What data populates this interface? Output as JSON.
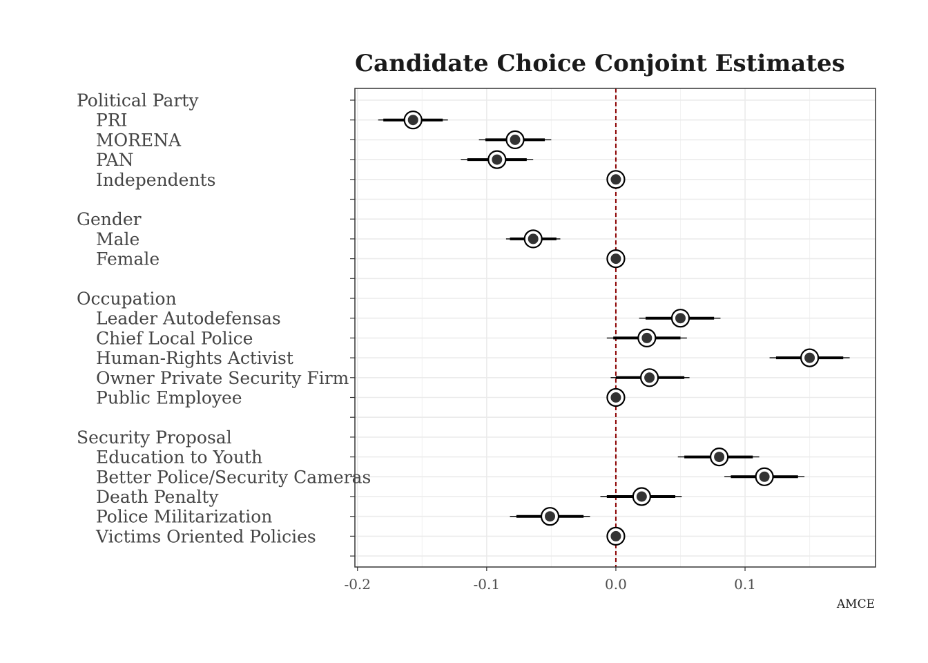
{
  "chart_data": {
    "type": "scatter",
    "title": "Candidate Choice Conjoint Estimates",
    "xlabel": "AMCE",
    "xlim": [
      -0.202,
      0.201
    ],
    "x_ticks": [
      -0.2,
      -0.1,
      0.0,
      0.1
    ],
    "x_tick_labels": [
      "-0.2",
      "-0.1",
      "0.0",
      "0.1"
    ],
    "reference_line": 0.0,
    "reference_color": "#8b0000",
    "grid": true,
    "rows": [
      {
        "label": "Political Party",
        "header": true
      },
      {
        "label": "PRI",
        "estimate": -0.157,
        "ci90": [
          -0.18,
          -0.134
        ],
        "ci95": [
          -0.184,
          -0.13
        ]
      },
      {
        "label": "MORENA",
        "estimate": -0.078,
        "ci90": [
          -0.101,
          -0.055
        ],
        "ci95": [
          -0.106,
          -0.05
        ]
      },
      {
        "label": "PAN",
        "estimate": -0.092,
        "ci90": [
          -0.115,
          -0.069
        ],
        "ci95": [
          -0.12,
          -0.064
        ]
      },
      {
        "label": "Independents",
        "estimate": 0.0
      },
      {
        "label": "",
        "spacer": true
      },
      {
        "label": "Gender",
        "header": true
      },
      {
        "label": "Male",
        "estimate": -0.064,
        "ci90": [
          -0.082,
          -0.046
        ],
        "ci95": [
          -0.085,
          -0.043
        ]
      },
      {
        "label": "Female",
        "estimate": 0.0
      },
      {
        "label": "",
        "spacer": true
      },
      {
        "label": "Occupation",
        "header": true
      },
      {
        "label": "Leader Autodefensas",
        "estimate": 0.05,
        "ci90": [
          0.023,
          0.076
        ],
        "ci95": [
          0.018,
          0.081
        ]
      },
      {
        "label": "Chief Local Police",
        "estimate": 0.024,
        "ci90": [
          -0.002,
          0.05
        ],
        "ci95": [
          -0.007,
          0.055
        ]
      },
      {
        "label": "Human-Rights Activist",
        "estimate": 0.15,
        "ci90": [
          0.124,
          0.176
        ],
        "ci95": [
          0.119,
          0.181
        ]
      },
      {
        "label": "Owner Private  Security Firm",
        "estimate": 0.026,
        "ci90": [
          0.0,
          0.053
        ],
        "ci95": [
          -0.004,
          0.057
        ]
      },
      {
        "label": "Public Employee",
        "estimate": 0.0
      },
      {
        "label": "",
        "spacer": true
      },
      {
        "label": "Security Proposal",
        "header": true
      },
      {
        "label": "Education to Youth",
        "estimate": 0.08,
        "ci90": [
          0.053,
          0.106
        ],
        "ci95": [
          0.048,
          0.111
        ]
      },
      {
        "label": "Better Police/Security Cameras",
        "estimate": 0.115,
        "ci90": [
          0.089,
          0.141
        ],
        "ci95": [
          0.084,
          0.146
        ]
      },
      {
        "label": "Death Penalty",
        "estimate": 0.02,
        "ci90": [
          -0.007,
          0.046
        ],
        "ci95": [
          -0.012,
          0.051
        ]
      },
      {
        "label": "Police Militarization",
        "estimate": -0.051,
        "ci90": [
          -0.077,
          -0.025
        ],
        "ci95": [
          -0.082,
          -0.02
        ]
      },
      {
        "label": "Victims Oriented Policies",
        "estimate": 0.0
      },
      {
        "label": "",
        "spacer": true
      }
    ]
  }
}
